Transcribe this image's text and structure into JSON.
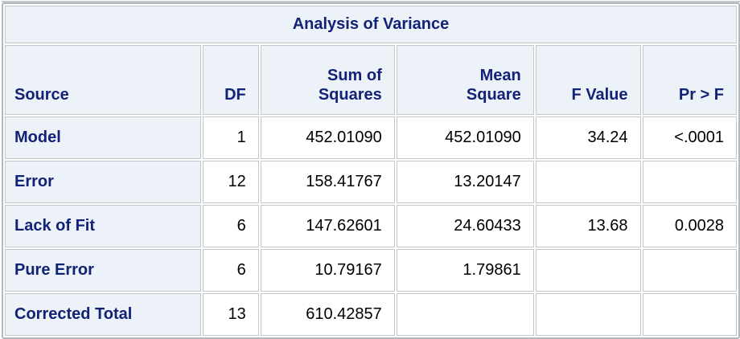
{
  "chart_data": {
    "type": "table",
    "title": "Analysis of Variance",
    "columns": [
      "Source",
      "DF",
      "Sum of Squares",
      "Mean Square",
      "F Value",
      "Pr > F"
    ],
    "rows": [
      [
        "Model",
        "1",
        "452.01090",
        "452.01090",
        "34.24",
        "<.0001"
      ],
      [
        "Error",
        "12",
        "158.41767",
        "13.20147",
        "",
        ""
      ],
      [
        "Lack of Fit",
        "6",
        "147.62601",
        "24.60433",
        "13.68",
        "0.0028"
      ],
      [
        "Pure Error",
        "6",
        "10.79167",
        "1.79861",
        "",
        ""
      ],
      [
        "Corrected Total",
        "13",
        "610.42857",
        "",
        "",
        ""
      ]
    ]
  },
  "headers": [
    "Source",
    "DF",
    "Sum of\nSquares",
    "Mean\nSquare",
    "F Value",
    "Pr > F"
  ],
  "colors": {
    "header_background": "#edf1f8",
    "header_text": "#112277",
    "data_text": "#000000",
    "cell_border": "#c3c7cb",
    "frame_border": "#b3b8bd",
    "page_background": "#ffffff"
  }
}
